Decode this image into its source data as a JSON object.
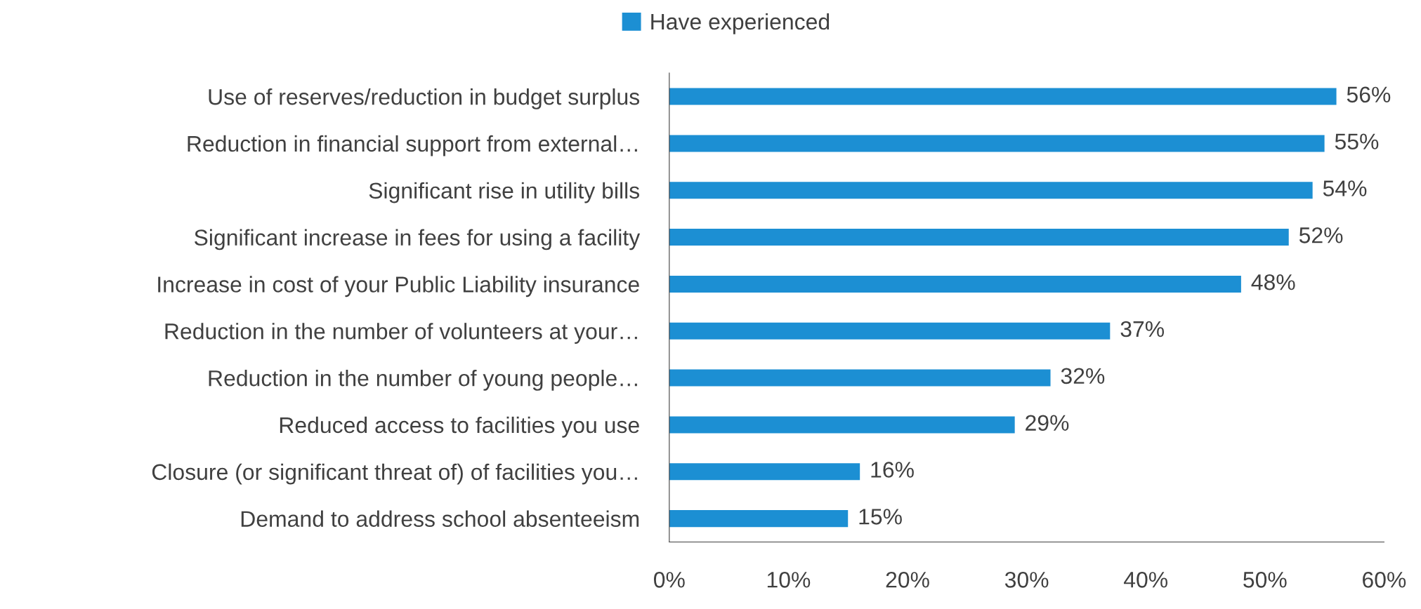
{
  "chart_data": {
    "type": "bar",
    "orientation": "horizontal",
    "categories": [
      "Use of reserves/reduction in budget surplus",
      "Reduction in financial support from external…",
      "Significant rise in utility bills",
      "Significant increase in fees for using a facility",
      "Increase in cost of your Public Liability insurance",
      "Reduction in the number of volunteers at your…",
      "Reduction in the number of young people…",
      "Reduced access to facilities you use",
      "Closure (or significant threat of) of facilities you…",
      "Demand to address school absenteeism"
    ],
    "series": [
      {
        "name": "Have experienced",
        "color": "#1c8fd3",
        "values": [
          56,
          55,
          54,
          52,
          48,
          37,
          32,
          29,
          16,
          15
        ],
        "value_labels": [
          "56%",
          "55%",
          "54%",
          "52%",
          "48%",
          "37%",
          "32%",
          "29%",
          "16%",
          "15%"
        ]
      }
    ],
    "xlim": [
      0,
      60
    ],
    "xticks": [
      {
        "value": 0,
        "label": "0%"
      },
      {
        "value": 10,
        "label": "10%"
      },
      {
        "value": 20,
        "label": "20%"
      },
      {
        "value": 30,
        "label": "30%"
      },
      {
        "value": 40,
        "label": "40%"
      },
      {
        "value": 50,
        "label": "50%"
      },
      {
        "value": 60,
        "label": "60%"
      }
    ],
    "legend": "top",
    "grid": false
  }
}
